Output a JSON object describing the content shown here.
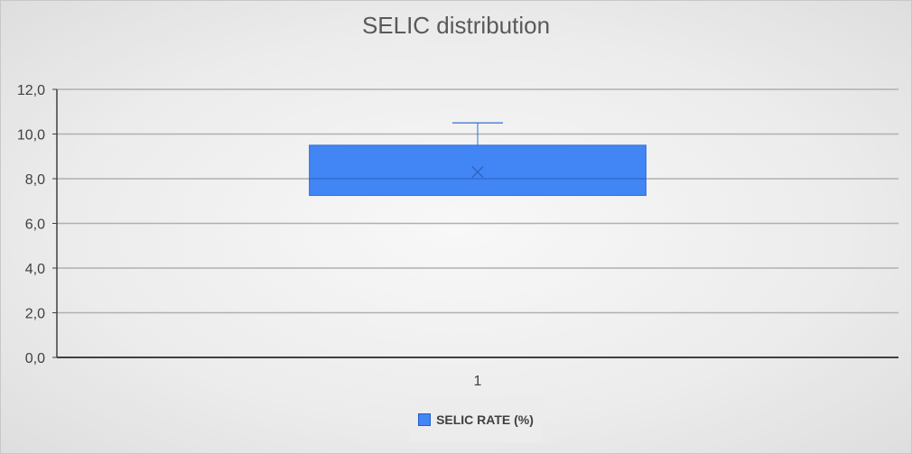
{
  "chart_data": {
    "type": "boxplot",
    "title": "SELIC distribution",
    "categories": [
      "1"
    ],
    "yticks": [
      "0,0",
      "2,0",
      "4,0",
      "6,0",
      "8,0",
      "10,0",
      "12,0"
    ],
    "ylim": [
      0,
      12
    ],
    "grid": true,
    "legend_position": "bottom",
    "series": [
      {
        "name": "SELIC RATE (%)",
        "color": "#4285f4",
        "min": 7.25,
        "q1": 7.25,
        "median": 8.0,
        "q3": 9.5,
        "max": 10.5,
        "mean": 8.3
      }
    ]
  }
}
